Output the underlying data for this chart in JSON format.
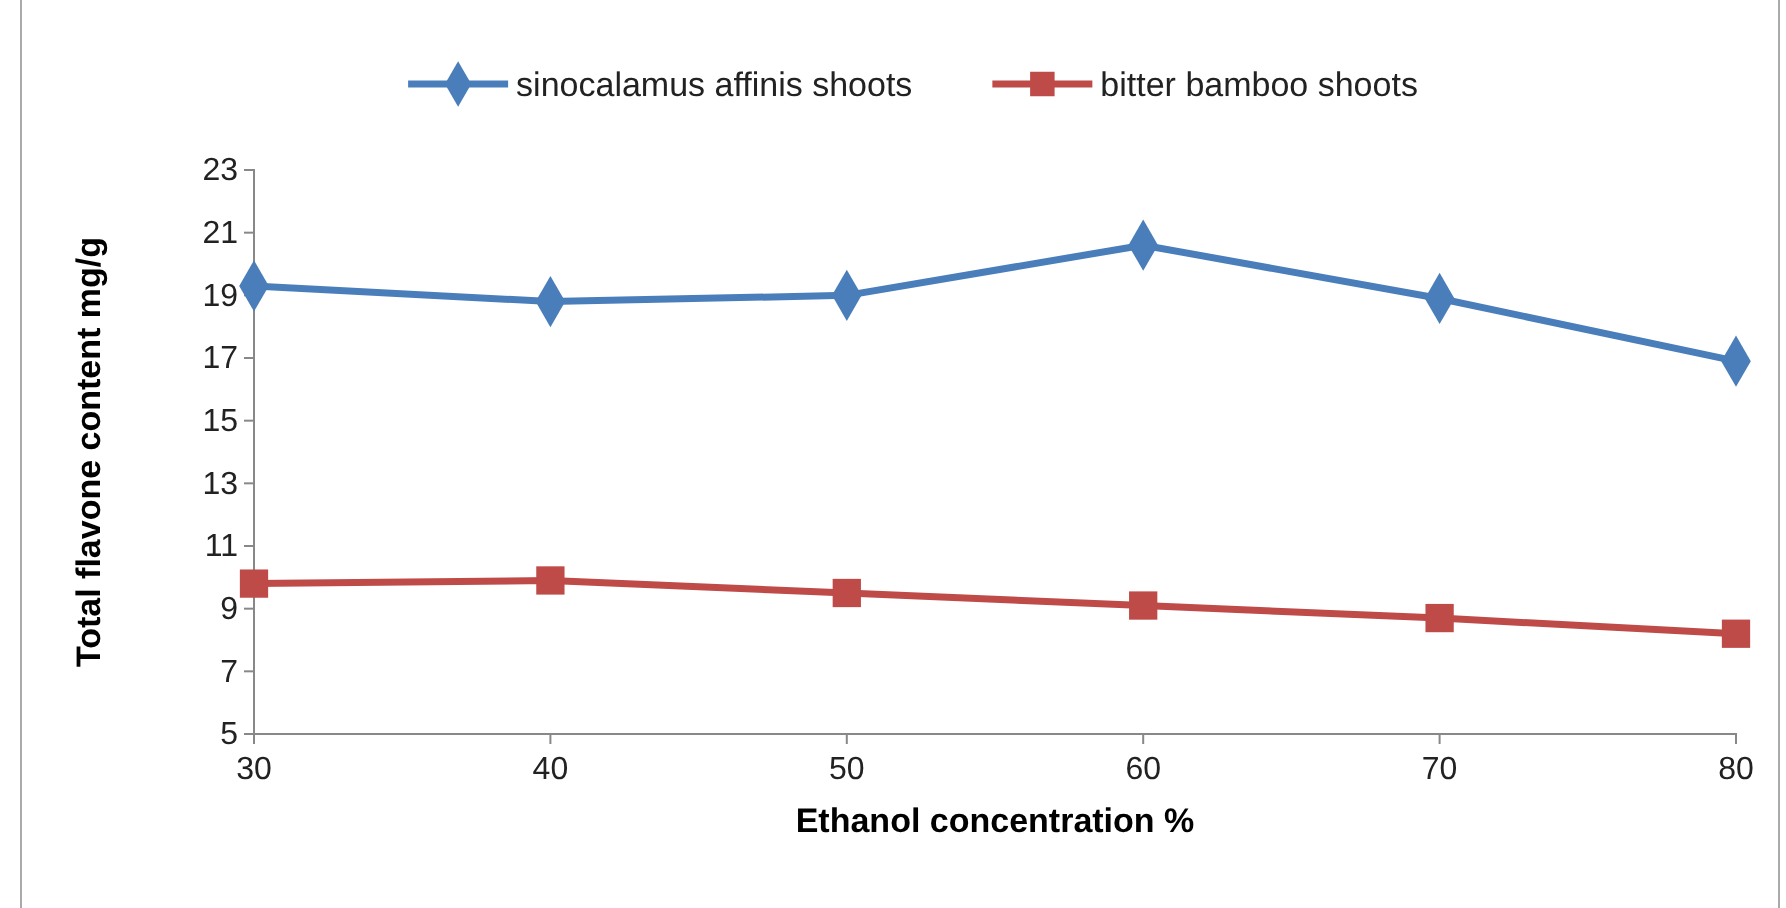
{
  "chart_data": {
    "type": "line",
    "xlabel": "Ethanol concentration %",
    "ylabel": "Total flavone content mg/g",
    "categories": [
      "30",
      "40",
      "50",
      "60",
      "70",
      "80"
    ],
    "series": [
      {
        "name": "sinocalamus affinis shoots",
        "color": "#4a7ebb",
        "marker": "diamond",
        "values": [
          19.3,
          18.8,
          19.0,
          20.6,
          18.9,
          16.9
        ]
      },
      {
        "name": "bitter bamboo shoots",
        "color": "#be4b48",
        "marker": "square",
        "values": [
          9.8,
          9.9,
          9.5,
          9.1,
          8.7,
          8.2
        ]
      }
    ],
    "ylim": [
      5,
      23
    ],
    "yticks": [
      5,
      7,
      9,
      11,
      13,
      15,
      17,
      19,
      21,
      23
    ],
    "grid": false,
    "legend": "top",
    "line_style": "solid"
  }
}
